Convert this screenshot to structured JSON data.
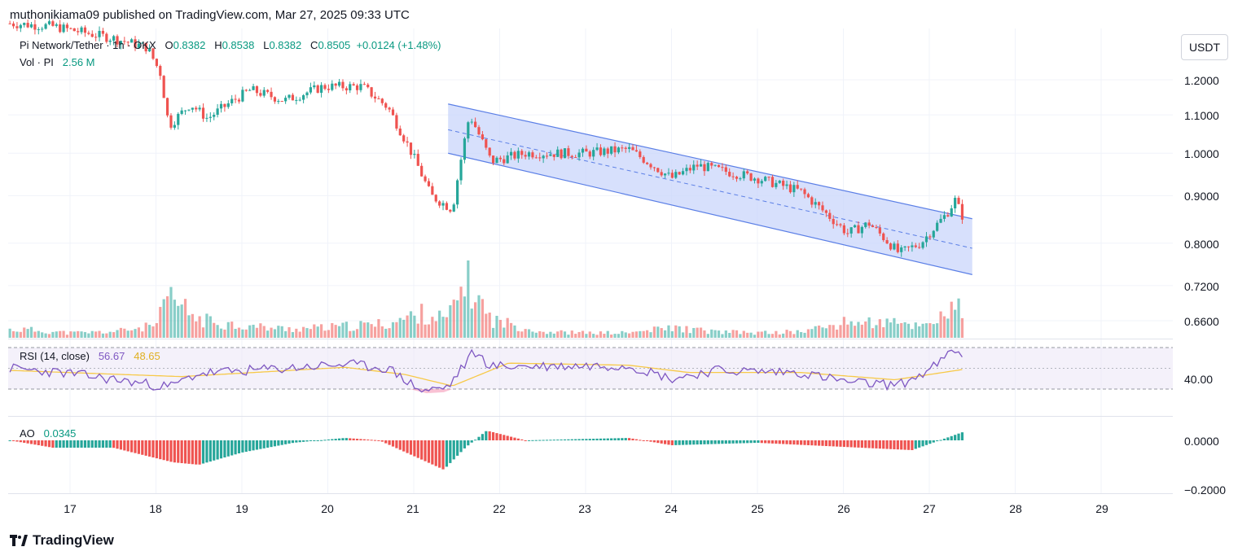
{
  "header": {
    "published_line": "muthonikiama09 published on TradingView.com, Mar 27, 2025 09:33 UTC"
  },
  "legend": {
    "symbol": "Pi Network/Tether · 1h · OKX",
    "open_label": "O",
    "open": "0.8382",
    "high_label": "H",
    "high": "0.8538",
    "low_label": "L",
    "low": "0.8382",
    "close_label": "C",
    "close": "0.8505",
    "change": "+0.0124 (+1.48%)",
    "vol_label": "Vol · PI",
    "vol_value": "2.56 M",
    "rsi_label": "RSI (14, close)",
    "rsi_value": "56.67",
    "rsi_ma_value": "48.65",
    "ao_label": "AO",
    "ao_value": "0.0345"
  },
  "currency_button": "USDT",
  "footer": {
    "brand": "TradingView"
  },
  "colors": {
    "up": "#26a69a",
    "down": "#ef5350",
    "channel_fill": "#c9d6fb",
    "channel_line": "#5b7fe6",
    "rsi_line": "#7e57c2",
    "rsi_ma": "#f7c948",
    "rsi_band": "#ede7f6"
  },
  "chart_data": {
    "type": "candlestick",
    "x_tick_labels": [
      "17",
      "18",
      "19",
      "20",
      "21",
      "22",
      "23",
      "24",
      "25",
      "26",
      "27",
      "28",
      "29"
    ],
    "price_axis_labels": [
      "1.2000",
      "1.1000",
      "1.0000",
      "0.9000",
      "0.8000",
      "0.7200",
      "0.6600"
    ],
    "price_ticks": [
      1.2,
      1.1,
      1.0,
      0.9,
      0.8,
      0.72,
      0.66
    ],
    "rsi_axis_label": "40.00",
    "ao_axis_labels": [
      "0.0000",
      "−0.2000"
    ],
    "ao_ticks": [
      0,
      -0.2
    ],
    "close_path": [
      {
        "day": 16.3,
        "close": 1.38
      },
      {
        "day": 16.8,
        "close": 1.37
      },
      {
        "day": 17.5,
        "close": 1.33
      },
      {
        "day": 17.9,
        "close": 1.3
      },
      {
        "day": 18.05,
        "close": 1.22
      },
      {
        "day": 18.15,
        "close": 1.07
      },
      {
        "day": 18.4,
        "close": 1.13
      },
      {
        "day": 18.6,
        "close": 1.09
      },
      {
        "day": 18.9,
        "close": 1.14
      },
      {
        "day": 19.1,
        "close": 1.17
      },
      {
        "day": 19.5,
        "close": 1.14
      },
      {
        "day": 19.95,
        "close": 1.18
      },
      {
        "day": 20.4,
        "close": 1.18
      },
      {
        "day": 20.7,
        "close": 1.12
      },
      {
        "day": 21.0,
        "close": 0.99
      },
      {
        "day": 21.2,
        "close": 0.9
      },
      {
        "day": 21.45,
        "close": 0.87
      },
      {
        "day": 21.65,
        "close": 1.1
      },
      {
        "day": 21.9,
        "close": 0.98
      },
      {
        "day": 22.3,
        "close": 1.0
      },
      {
        "day": 23.0,
        "close": 1.0
      },
      {
        "day": 23.5,
        "close": 1.01
      },
      {
        "day": 24.0,
        "close": 0.94
      },
      {
        "day": 24.3,
        "close": 0.97
      },
      {
        "day": 25.0,
        "close": 0.94
      },
      {
        "day": 25.5,
        "close": 0.91
      },
      {
        "day": 26.05,
        "close": 0.82
      },
      {
        "day": 26.3,
        "close": 0.84
      },
      {
        "day": 26.65,
        "close": 0.78
      },
      {
        "day": 26.9,
        "close": 0.8
      },
      {
        "day": 27.2,
        "close": 0.86
      },
      {
        "day": 27.3,
        "close": 0.89
      },
      {
        "day": 27.4,
        "close": 0.85
      }
    ],
    "channel": {
      "start_day": 21.4,
      "end_day": 27.5,
      "upper": [
        1.13,
        0.85
      ],
      "middle": [
        1.06,
        0.79
      ],
      "lower": [
        1.0,
        0.74
      ]
    },
    "volume_scale": "relative_0_to_1",
    "volume_bars": [
      {
        "day": 16.5,
        "v": 0.2
      },
      {
        "day": 17.0,
        "v": 0.12
      },
      {
        "day": 17.5,
        "v": 0.15
      },
      {
        "day": 18.0,
        "v": 0.3
      },
      {
        "day": 18.15,
        "v": 1.0
      },
      {
        "day": 18.5,
        "v": 0.45
      },
      {
        "day": 19.0,
        "v": 0.3
      },
      {
        "day": 19.5,
        "v": 0.22
      },
      {
        "day": 20.0,
        "v": 0.25
      },
      {
        "day": 20.7,
        "v": 0.35
      },
      {
        "day": 21.1,
        "v": 0.6
      },
      {
        "day": 21.4,
        "v": 0.45
      },
      {
        "day": 21.6,
        "v": 1.45
      },
      {
        "day": 21.9,
        "v": 0.45
      },
      {
        "day": 22.5,
        "v": 0.15
      },
      {
        "day": 23.0,
        "v": 0.12
      },
      {
        "day": 23.5,
        "v": 0.12
      },
      {
        "day": 24.0,
        "v": 0.25
      },
      {
        "day": 24.5,
        "v": 0.15
      },
      {
        "day": 25.0,
        "v": 0.12
      },
      {
        "day": 25.5,
        "v": 0.15
      },
      {
        "day": 26.1,
        "v": 0.4
      },
      {
        "day": 26.6,
        "v": 0.35
      },
      {
        "day": 26.9,
        "v": 0.3
      },
      {
        "day": 27.3,
        "v": 0.7
      }
    ],
    "rsi_path": [
      {
        "day": 16.3,
        "rsi": 50
      },
      {
        "day": 17.0,
        "rsi": 45
      },
      {
        "day": 18.15,
        "rsi": 32
      },
      {
        "day": 18.5,
        "rsi": 45
      },
      {
        "day": 19.5,
        "rsi": 50
      },
      {
        "day": 20.2,
        "rsi": 54
      },
      {
        "day": 20.7,
        "rsi": 50
      },
      {
        "day": 21.1,
        "rsi": 28
      },
      {
        "day": 21.4,
        "rsi": 32
      },
      {
        "day": 21.7,
        "rsi": 66
      },
      {
        "day": 21.9,
        "rsi": 52
      },
      {
        "day": 22.5,
        "rsi": 52
      },
      {
        "day": 23.5,
        "rsi": 53
      },
      {
        "day": 24.0,
        "rsi": 40
      },
      {
        "day": 24.5,
        "rsi": 48
      },
      {
        "day": 25.5,
        "rsi": 46
      },
      {
        "day": 26.1,
        "rsi": 36
      },
      {
        "day": 26.65,
        "rsi": 34
      },
      {
        "day": 27.0,
        "rsi": 48
      },
      {
        "day": 27.3,
        "rsi": 68
      },
      {
        "day": 27.4,
        "rsi": 57
      }
    ],
    "rsi_ma_path": [
      {
        "day": 16.3,
        "rsi": 48
      },
      {
        "day": 18.3,
        "rsi": 42
      },
      {
        "day": 20.2,
        "rsi": 51
      },
      {
        "day": 20.9,
        "rsi": 44
      },
      {
        "day": 21.45,
        "rsi": 33
      },
      {
        "day": 22.1,
        "rsi": 55
      },
      {
        "day": 23.5,
        "rsi": 53
      },
      {
        "day": 24.2,
        "rsi": 46
      },
      {
        "day": 25.5,
        "rsi": 46
      },
      {
        "day": 26.6,
        "rsi": 39
      },
      {
        "day": 27.4,
        "rsi": 49
      }
    ],
    "ao_path": [
      {
        "day": 16.3,
        "ao": 0.0
      },
      {
        "day": 16.8,
        "ao": -0.03
      },
      {
        "day": 17.5,
        "ao": -0.03
      },
      {
        "day": 18.2,
        "ao": -0.09
      },
      {
        "day": 18.5,
        "ao": -0.1
      },
      {
        "day": 19.0,
        "ao": -0.05
      },
      {
        "day": 19.6,
        "ao": -0.01
      },
      {
        "day": 20.2,
        "ao": 0.01
      },
      {
        "day": 20.6,
        "ao": 0.0
      },
      {
        "day": 21.1,
        "ao": -0.08
      },
      {
        "day": 21.35,
        "ao": -0.12
      },
      {
        "day": 21.6,
        "ao": -0.03
      },
      {
        "day": 21.85,
        "ao": 0.04
      },
      {
        "day": 22.3,
        "ao": 0.0
      },
      {
        "day": 23.5,
        "ao": 0.01
      },
      {
        "day": 24.0,
        "ao": -0.02
      },
      {
        "day": 25.0,
        "ao": -0.01
      },
      {
        "day": 26.2,
        "ao": -0.03
      },
      {
        "day": 26.8,
        "ao": -0.04
      },
      {
        "day": 27.4,
        "ao": 0.035
      }
    ],
    "grid": true,
    "price_scale": "log"
  }
}
